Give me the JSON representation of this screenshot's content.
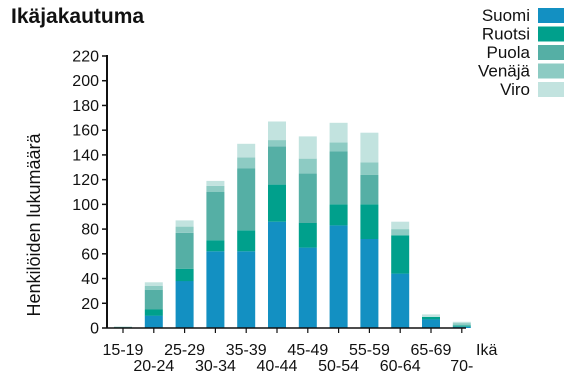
{
  "chart_data": {
    "type": "bar",
    "stacked": true,
    "title": "Ikäjakautuma",
    "xlabel": "Ikä",
    "ylabel": "Henkilöiden lukumäärä",
    "ylim": [
      0,
      220
    ],
    "yticks": [
      0,
      20,
      40,
      60,
      80,
      100,
      120,
      140,
      160,
      180,
      200,
      220
    ],
    "grid": false,
    "legend_position": "top-right",
    "categories": [
      "15-19",
      "20-24",
      "25-29",
      "30-34",
      "35-39",
      "40-44",
      "45-49",
      "50-54",
      "55-59",
      "60-64",
      "65-69",
      "70-"
    ],
    "series": [
      {
        "name": "Suomi",
        "color": "#1390c2",
        "values": [
          0,
          10,
          38,
          62,
          62,
          86,
          65,
          83,
          72,
          44,
          7,
          1
        ]
      },
      {
        "name": "Ruotsi",
        "color": "#00a08c",
        "values": [
          0,
          5,
          10,
          9,
          17,
          30,
          20,
          17,
          28,
          31,
          2,
          1
        ]
      },
      {
        "name": "Puola",
        "color": "#55afa5",
        "values": [
          1,
          16,
          29,
          39,
          50,
          31,
          40,
          43,
          24,
          0,
          0,
          0
        ]
      },
      {
        "name": "Venäjä",
        "color": "#8dcbc3",
        "values": [
          0,
          3,
          5,
          5,
          9,
          5,
          12,
          7,
          10,
          5,
          0,
          2
        ]
      },
      {
        "name": "Viro",
        "color": "#c2e3df",
        "values": [
          0,
          3,
          5,
          4,
          11,
          15,
          18,
          16,
          24,
          6,
          2,
          1
        ]
      }
    ]
  }
}
